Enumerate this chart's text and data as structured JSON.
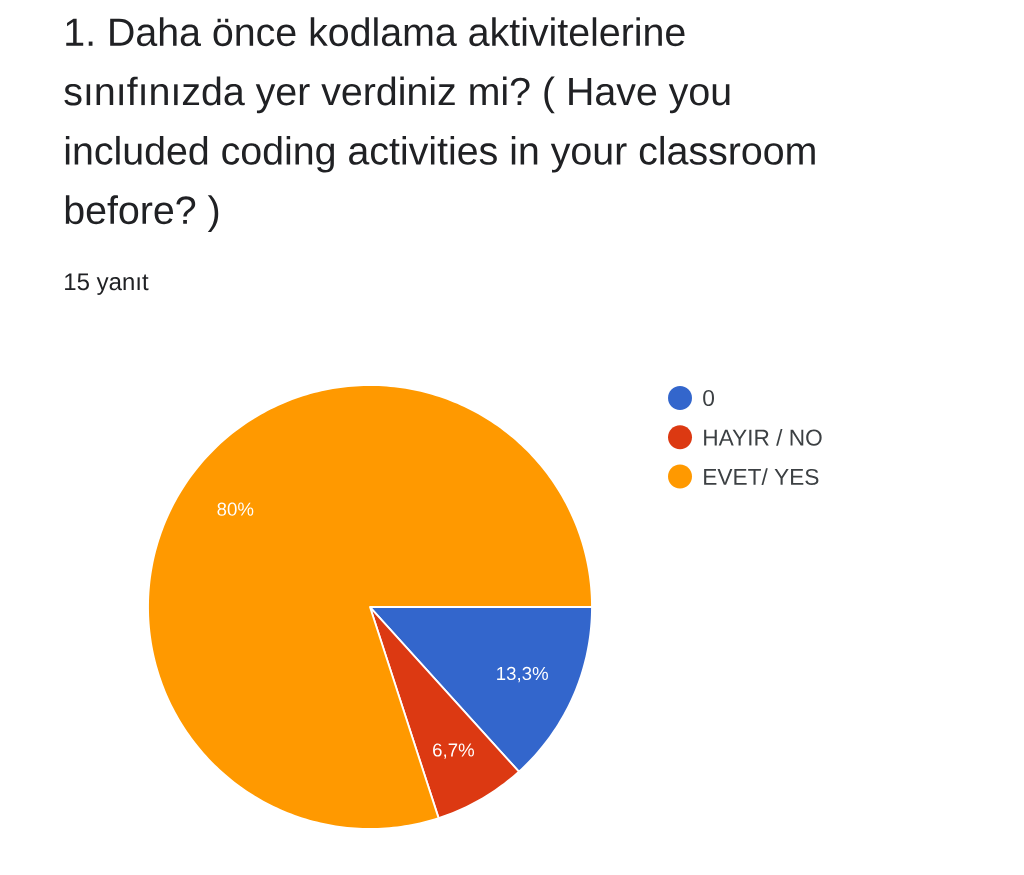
{
  "chart_data": {
    "type": "pie",
    "title": "1. Daha önce kodlama aktivitelerine sınıfınızda yer verdiniz mi? ( Have you included coding activities in your classroom before? )",
    "subtitle": "15 yanıt",
    "categories": [
      "0",
      "HAYIR / NO",
      "EVET/ YES"
    ],
    "values": [
      13.3,
      6.7,
      80
    ],
    "colors": [
      "#3366cc",
      "#dc3912",
      "#ff9900"
    ],
    "value_labels": [
      "13,3%",
      "6,7%",
      "80%"
    ],
    "legend": "right"
  }
}
